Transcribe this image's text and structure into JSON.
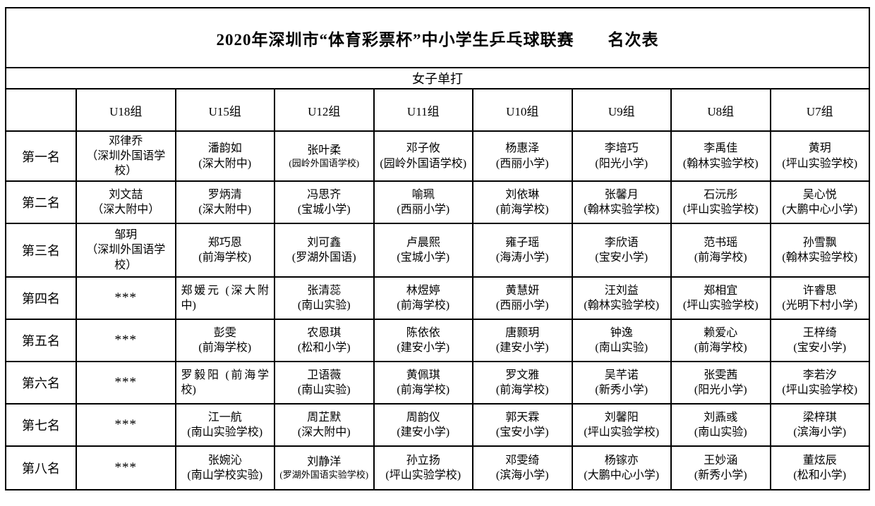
{
  "title": "2020年深圳市“体育彩票杯”中小学生乒乓球联赛　　名次表",
  "subtitle": "女子单打",
  "table": {
    "headers": [
      "",
      "U18组",
      "U15组",
      "U12组",
      "U11组",
      "U10组",
      "U9组",
      "U8组",
      "U7组"
    ],
    "rows": [
      {
        "rank": "第一名",
        "cells": [
          {
            "name": "邓律乔",
            "school": "（深圳外国语学校）"
          },
          {
            "name": "潘韵如",
            "school": "(深大附中)"
          },
          {
            "name": "张叶柔",
            "school": "(园岭外国语学校)",
            "style": "small"
          },
          {
            "name": "邓子攸",
            "school": "(园岭外国语学校)"
          },
          {
            "name": "杨惠泽",
            "school": "(西丽小学)"
          },
          {
            "name": "李培巧",
            "school": "(阳光小学)"
          },
          {
            "name": "李禹佳",
            "school": "(翰林实验学校)"
          },
          {
            "name": "黄玥",
            "school": "(坪山实验学校)"
          }
        ]
      },
      {
        "rank": "第二名",
        "cells": [
          {
            "name": "刘文喆",
            "school": "（深大附中）"
          },
          {
            "name": "罗炳清",
            "school": "(深大附中)"
          },
          {
            "name": "冯思齐",
            "school": "(宝城小学)"
          },
          {
            "name": "喻珮",
            "school": "(西丽小学)"
          },
          {
            "name": "刘依琳",
            "school": "(前海学校)"
          },
          {
            "name": "张馨月",
            "school": "(翰林实验学校)"
          },
          {
            "name": "石沅彤",
            "school": "(坪山实验学校)"
          },
          {
            "name": "吴心悦",
            "school": "(大鹏中心小学)"
          }
        ]
      },
      {
        "rank": "第三名",
        "cells": [
          {
            "name": "邹玥",
            "school": "（深圳外国语学校）"
          },
          {
            "name": "郑巧恩",
            "school": "(前海学校)"
          },
          {
            "name": "刘可鑫",
            "school": "(罗湖外国语)"
          },
          {
            "name": "卢晨熙",
            "school": "(宝城小学)"
          },
          {
            "name": "雍子瑶",
            "school": "(海涛小学)"
          },
          {
            "name": "李欣语",
            "school": "(宝安小学)"
          },
          {
            "name": "范书瑶",
            "school": "(前海学校)"
          },
          {
            "name": "孙雪飘",
            "school": "(翰林实验学校)"
          }
        ]
      },
      {
        "rank": "第四名",
        "cells": [
          {
            "text": "***"
          },
          {
            "name": "郑媛元",
            "school": "(深大附中)",
            "style": "inline"
          },
          {
            "name": "张清蕊",
            "school": "(南山实验)"
          },
          {
            "name": "林煜婷",
            "school": "(前海学校)"
          },
          {
            "name": "黄慧妍",
            "school": "(西丽小学)"
          },
          {
            "name": "汪刘益",
            "school": "(翰林实验学校)"
          },
          {
            "name": "郑相宜",
            "school": "(坪山实验学校)"
          },
          {
            "name": "许睿思",
            "school": "(光明下村小学)"
          }
        ]
      },
      {
        "rank": "第五名",
        "cells": [
          {
            "text": "***"
          },
          {
            "name": "彭雯",
            "school": "(前海学校)"
          },
          {
            "name": "农恩琪",
            "school": "(松和小学)"
          },
          {
            "name": "陈依依",
            "school": "(建安小学)"
          },
          {
            "name": "唐颢玥",
            "school": "(建安小学)"
          },
          {
            "name": "钟逸",
            "school": "(南山实验)"
          },
          {
            "name": "赖爱心",
            "school": "(前海学校)"
          },
          {
            "name": "王梓绮",
            "school": "(宝安小学)"
          }
        ]
      },
      {
        "rank": "第六名",
        "cells": [
          {
            "text": "***"
          },
          {
            "name": "罗毅阳",
            "school": "(前海学校)",
            "style": "inline"
          },
          {
            "name": "卫语薇",
            "school": "(南山实验)"
          },
          {
            "name": "黄佩琪",
            "school": "(前海学校)"
          },
          {
            "name": "罗文雅",
            "school": "(前海学校)"
          },
          {
            "name": "吴芊诺",
            "school": "(新秀小学)"
          },
          {
            "name": "张雯茜",
            "school": "(阳光小学)"
          },
          {
            "name": "李若汐",
            "school": "(坪山实验学校)"
          }
        ]
      },
      {
        "rank": "第七名",
        "cells": [
          {
            "text": "***"
          },
          {
            "name": "江一航",
            "school": "(南山实验学校)"
          },
          {
            "name": "周芷默",
            "school": "(深大附中)"
          },
          {
            "name": "周韵仪",
            "school": "(建安小学)"
          },
          {
            "name": "郭天霖",
            "school": "(宝安小学)"
          },
          {
            "name": "刘馨阳",
            "school": "(坪山实验学校)"
          },
          {
            "name": "刘鼒彧",
            "school": "(南山实验)"
          },
          {
            "name": "梁梓琪",
            "school": "(滨海小学)"
          }
        ]
      },
      {
        "rank": "第八名",
        "cells": [
          {
            "text": "***"
          },
          {
            "name": "张婉沁",
            "school": "(南山学校实验)"
          },
          {
            "name": "刘静洋",
            "school": "(罗湖外国语实验学校)",
            "style": "small"
          },
          {
            "name": "孙立扬",
            "school": "(坪山实验学校)"
          },
          {
            "name": "邓雯绮",
            "school": "(滨海小学)"
          },
          {
            "name": "杨镓亦",
            "school": "(大鹏中心小学)"
          },
          {
            "name": "王妙涵",
            "school": "(新秀小学)"
          },
          {
            "name": "董炫辰",
            "school": "(松和小学)"
          }
        ]
      }
    ]
  }
}
